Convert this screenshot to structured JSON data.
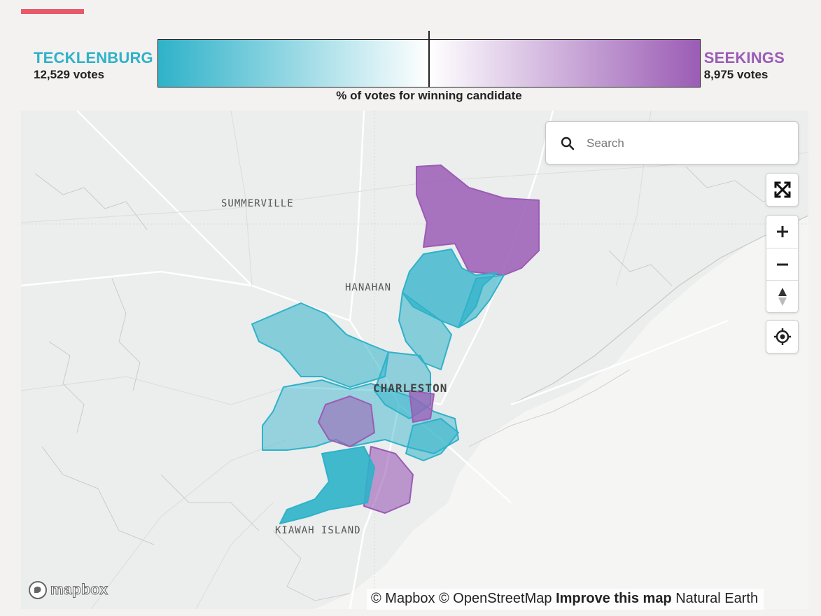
{
  "colors": {
    "accent": "#e85a6a",
    "tecklenburg": "#2fb2c9",
    "seekings": "#9b5cb5",
    "map_bg": "#eceded"
  },
  "header": {
    "left_candidate": {
      "name": "TECKLENBURG",
      "votes": "12,529 votes"
    },
    "right_candidate": {
      "name": "SEEKINGS",
      "votes": "8,975 votes"
    },
    "scale_caption": "% of votes for winning candidate"
  },
  "map": {
    "search_placeholder": "Search",
    "places": {
      "summerville": "SUMMERVILLE",
      "hanahan": "HANAHAN",
      "charleston": "CHARLESTON",
      "kiawah": "KIAWAH ISLAND"
    },
    "controls": [
      "fullscreen-icon",
      "zoom-in-icon",
      "zoom-out-icon",
      "compass-icon",
      "geolocate-icon"
    ],
    "logo_text": "mapbox",
    "attribution": {
      "mapbox": "© Mapbox",
      "osm": "© OpenStreetMap",
      "improve": "Improve this map",
      "natural_earth": "Natural Earth"
    }
  }
}
